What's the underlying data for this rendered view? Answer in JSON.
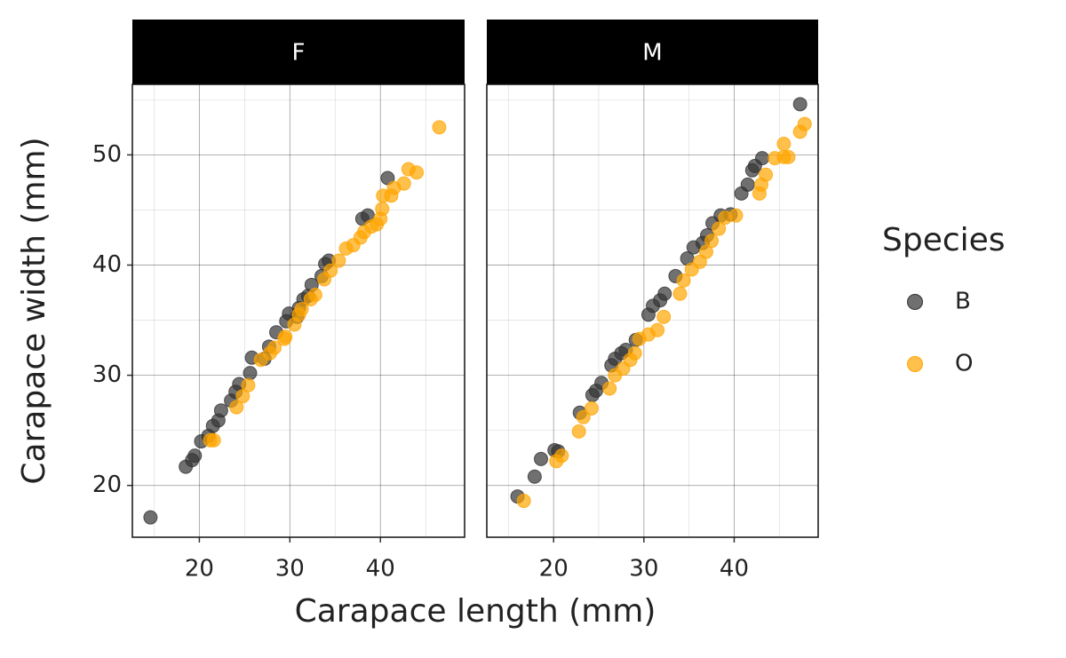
{
  "chart_data": {
    "type": "scatter",
    "xlabel": "Carapace length (mm)",
    "ylabel": "Carapace width (mm)",
    "legend": {
      "title": "Species",
      "position": "right"
    },
    "series": [
      {
        "name": "B",
        "color": "#333333"
      },
      {
        "name": "O",
        "color": "#ffa500"
      }
    ],
    "xlim": [
      12.6,
      49.3
    ],
    "ylim": [
      15.3,
      56.4
    ],
    "xticks": [
      20,
      30,
      40
    ],
    "yticks": [
      20,
      30,
      40,
      50
    ],
    "xminor": [
      15,
      25,
      35,
      45
    ],
    "yminor": [
      25,
      35,
      45,
      55
    ],
    "grid": true,
    "facets": [
      {
        "title": "F",
        "series": [
          {
            "x": [
              14.6,
              18.5,
              19.2,
              19.5,
              20.2,
              21,
              21.5,
              22.1,
              22.4,
              23.5,
              24,
              24.4,
              25.6,
              25.8,
              27.7,
              28.5,
              29.6,
              29.9,
              31,
              31.5,
              32.4,
              33.5,
              33.9,
              34.3,
              38,
              38.6,
              40.8,
              27.2,
              30.8,
              32
            ],
            "y": [
              17.1,
              21.7,
              22.3,
              22.7,
              24.0,
              24.5,
              25.4,
              25.9,
              26.8,
              27.7,
              28.5,
              29.2,
              30.2,
              31.6,
              32.6,
              33.9,
              34.9,
              35.6,
              36.1,
              36.9,
              38.2,
              39,
              40.1,
              40.4,
              44.2,
              44.5,
              47.9,
              31.5,
              35.3,
              37.2
            ]
          },
          {
            "x": [
              21.2,
              21.6,
              24.1,
              24.8,
              25.4,
              26.8,
              27.8,
              28.3,
              29.5,
              30.5,
              31,
              31.3,
              32.3,
              32.8,
              33.8,
              34.5,
              35.4,
              36.2,
              37,
              37.8,
              38.2,
              39,
              39.6,
              40,
              40.2,
              40.3,
              41.2,
              41.5,
              42.6,
              43.1,
              44,
              46.5,
              29.4
            ],
            "y": [
              24.1,
              24.1,
              27.1,
              28.1,
              29.1,
              31.4,
              32.0,
              32.5,
              33.5,
              34.6,
              35.5,
              36,
              36.9,
              37.3,
              38.7,
              39.5,
              40.4,
              41.5,
              41.8,
              42.5,
              43,
              43.5,
              43.7,
              44.2,
              45.1,
              46.3,
              46.3,
              47,
              47.4,
              48.7,
              48.4,
              52.5,
              33.3
            ]
          }
        ]
      },
      {
        "title": "M",
        "series": [
          {
            "x": [
              16,
              17.9,
              18.6,
              20.1,
              20.5,
              22.9,
              24.3,
              24.7,
              25.3,
              26.4,
              26.8,
              27.5,
              28,
              29.1,
              30.5,
              31,
              31.8,
              32.3,
              33.5,
              34.8,
              35.5,
              36.5,
              37,
              37.6,
              38.5,
              39.6,
              40.8,
              41.5,
              42,
              42.3,
              43.1,
              47.3
            ],
            "y": [
              19,
              20.8,
              22.4,
              23.2,
              23.1,
              26.6,
              28.2,
              28.6,
              29.3,
              30.9,
              31.5,
              32,
              32.3,
              33.2,
              35.5,
              36.3,
              36.8,
              37.4,
              39,
              40.6,
              41.6,
              42,
              42.7,
              43.8,
              44.5,
              44.6,
              46.5,
              47.3,
              48.6,
              49,
              49.7,
              54.6
            ]
          },
          {
            "x": [
              16.7,
              20.3,
              20.9,
              22.8,
              23.3,
              24.2,
              26.2,
              26.8,
              27.7,
              28.5,
              29,
              29.5,
              30.5,
              31.5,
              32.2,
              34,
              34.4,
              35.3,
              36.2,
              36.9,
              37.5,
              38.3,
              39,
              40.2,
              42.8,
              43,
              43.5,
              44.5,
              45.5,
              46,
              45.5,
              47.3,
              47.8
            ],
            "y": [
              18.6,
              22.2,
              22.7,
              24.9,
              26.2,
              27,
              28.8,
              30,
              30.6,
              31.4,
              32,
              33.3,
              33.7,
              34.1,
              35.3,
              37.4,
              38.6,
              39.6,
              40.3,
              41.2,
              42.2,
              43.3,
              44.3,
              44.5,
              46.5,
              47.3,
              48.2,
              49.7,
              49.8,
              49.8,
              51,
              52.1,
              52.8
            ]
          }
        ]
      }
    ]
  }
}
